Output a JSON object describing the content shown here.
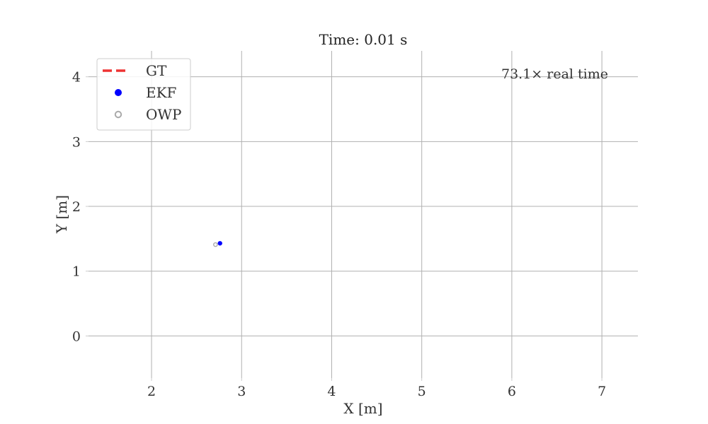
{
  "chart_data": {
    "type": "scatter",
    "title": "Time: 0.01 s",
    "xlabel": "X [m]",
    "ylabel": "Y [m]",
    "xlim": [
      1.3,
      7.4
    ],
    "ylim": [
      -0.65,
      4.4
    ],
    "xticks": [
      2,
      3,
      4,
      5,
      6,
      7
    ],
    "yticks": [
      0,
      1,
      2,
      3,
      4
    ],
    "grid": true,
    "legend_position": "top-left",
    "annotation": "73.1× real time",
    "series": [
      {
        "name": "GT",
        "marker": "dashed-line",
        "color": "#ee3333",
        "points": []
      },
      {
        "name": "EKF",
        "marker": "filled-circle",
        "color": "#0000ff",
        "points": [
          {
            "x": 2.76,
            "y": 1.43
          }
        ]
      },
      {
        "name": "OWP",
        "marker": "hollow-circle",
        "color": "#aaaaaa",
        "points": [
          {
            "x": 2.71,
            "y": 1.41
          }
        ]
      }
    ]
  }
}
